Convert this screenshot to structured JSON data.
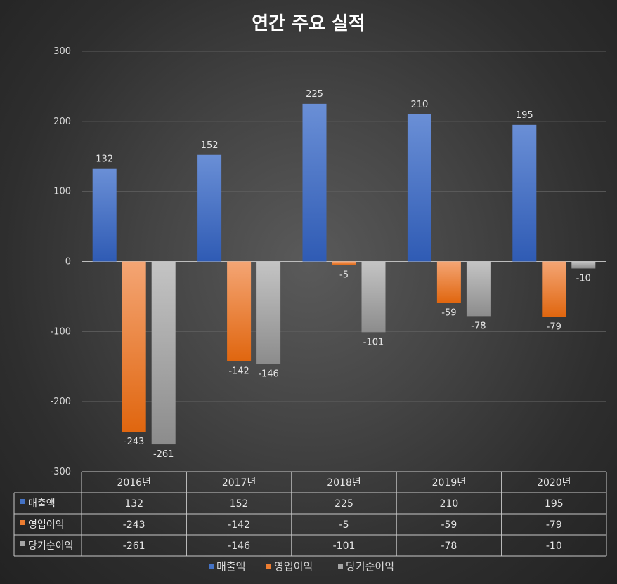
{
  "chart_data": {
    "type": "bar",
    "title": "연간 주요 실적",
    "categories": [
      "2016년",
      "2017년",
      "2018년",
      "2019년",
      "2020년"
    ],
    "series": [
      {
        "name": "매출액",
        "color": "#4472c4",
        "values": [
          132,
          152,
          225,
          210,
          195
        ]
      },
      {
        "name": "영업이익",
        "color": "#ed7d31",
        "values": [
          -243,
          -142,
          -5,
          -59,
          -79
        ]
      },
      {
        "name": "당기순이익",
        "color": "#a5a5a5",
        "values": [
          -261,
          -146,
          -101,
          -78,
          -10
        ]
      }
    ],
    "ylim": [
      -300,
      300
    ],
    "yticks": [
      300,
      200,
      100,
      0,
      -100,
      -200,
      -300
    ],
    "grid": true,
    "data_table": true,
    "legend_position": "bottom"
  }
}
